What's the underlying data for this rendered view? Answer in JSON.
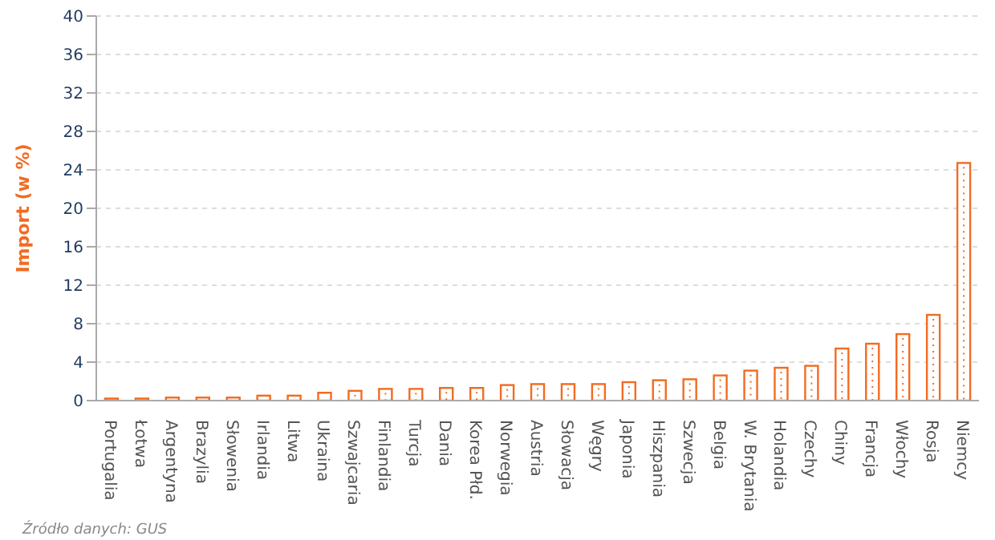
{
  "chart_data": {
    "type": "bar",
    "ylabel": "Import (w %)",
    "categories": [
      "Portugalia",
      "Łotwa",
      "Argentyna",
      "Brazylia",
      "Słowenia",
      "Irlandia",
      "Litwa",
      "Ukraina",
      "Szwajcaria",
      "Finlandia",
      "Turcja",
      "Dania",
      "Korea Płd.",
      "Norwegia",
      "Austria",
      "Słowacja",
      "Węgry",
      "Japonia",
      "Hiszpania",
      "Szwecja",
      "Belgia",
      "W. Brytania",
      "Holandia",
      "Czechy",
      "Chiny",
      "Francja",
      "Włochy",
      "Rosja",
      "Niemcy"
    ],
    "values": [
      0.3,
      0.3,
      0.4,
      0.4,
      0.4,
      0.6,
      0.6,
      0.9,
      1.1,
      1.3,
      1.3,
      1.4,
      1.4,
      1.7,
      1.8,
      1.8,
      1.8,
      2.0,
      2.2,
      2.3,
      2.7,
      3.2,
      3.5,
      3.7,
      5.5,
      6.0,
      7.0,
      9.0,
      24.8
    ],
    "color": "#f26b21",
    "ylim": [
      0,
      40
    ],
    "yticks": [
      0,
      4,
      8,
      12,
      16,
      20,
      24,
      28,
      32,
      36,
      40
    ],
    "grid": "y",
    "annotations": [
      "Źródło danych: GUS"
    ]
  }
}
